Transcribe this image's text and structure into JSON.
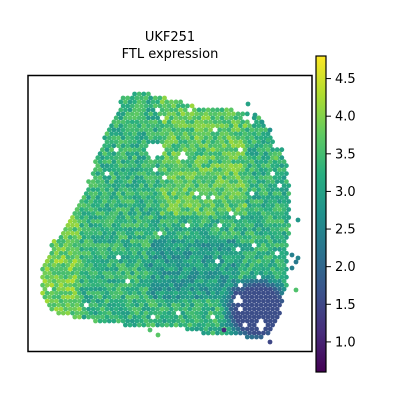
{
  "chart_data": {
    "type": "scatter",
    "title_line1": "UKF251",
    "title_line2": "FTL expression",
    "xlabel": "",
    "ylabel": "",
    "axis_ticks": "none",
    "colormap": "viridis",
    "colorbar": {
      "min": 0.6,
      "max": 4.8,
      "ticks": [
        "1.0",
        "1.5",
        "2.0",
        "2.5",
        "3.0",
        "3.5",
        "4.0",
        "4.5"
      ],
      "tick_values": [
        1.0,
        1.5,
        2.0,
        2.5,
        3.0,
        3.5,
        4.0,
        4.5
      ],
      "placement": "right"
    },
    "typical_values": {
      "main_tissue": 3.3,
      "upper_right_region": 3.8,
      "left_edge_region": 3.9,
      "lower_right_cluster": 1.6
    }
  }
}
